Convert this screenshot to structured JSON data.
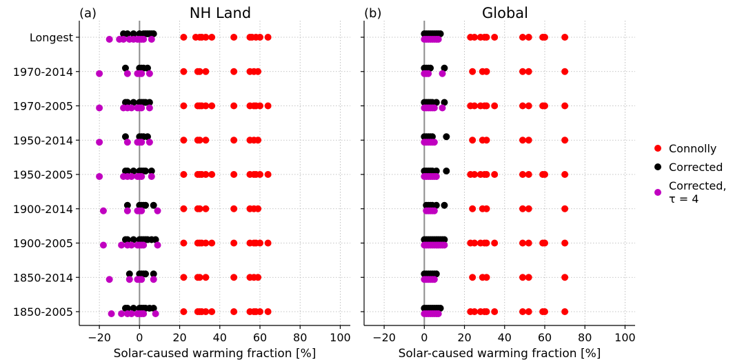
{
  "chart_data": [
    {
      "type": "scatter",
      "panel_label": "(a)",
      "title": "NH Land",
      "xlabel": "Solar-caused warming fraction [%]",
      "xlim": [
        -30,
        105
      ],
      "xticks": [
        -20,
        0,
        20,
        40,
        60,
        80,
        100
      ],
      "reference_line_x": 0,
      "grid": true,
      "categories": [
        "Longest",
        "1970-2014",
        "1970-2005",
        "1950-2014",
        "1950-2005",
        "1900-2014",
        "1900-2005",
        "1850-2014",
        "1850-2005"
      ],
      "series": [
        {
          "name": "Connolly",
          "points": {
            "Longest": [
              22,
              28,
              30,
              31,
              33,
              36,
              47,
              55,
              56,
              58,
              60,
              64
            ],
            "1970-2014": [
              22,
              29,
              30,
              33,
              47,
              55,
              57,
              59
            ],
            "1970-2005": [
              22,
              29,
              30,
              31,
              33,
              36,
              47,
              55,
              57,
              58,
              60,
              64
            ],
            "1950-2014": [
              22,
              29,
              30,
              33,
              47,
              55,
              57,
              59
            ],
            "1950-2005": [
              22,
              29,
              30,
              31,
              33,
              36,
              47,
              55,
              57,
              58,
              60,
              64
            ],
            "1900-2014": [
              22,
              29,
              30,
              33,
              47,
              55,
              57,
              59
            ],
            "1900-2005": [
              22,
              29,
              30,
              31,
              33,
              36,
              47,
              55,
              57,
              58,
              60,
              64
            ],
            "1850-2014": [
              22,
              29,
              30,
              33,
              47,
              55,
              57,
              59
            ],
            "1850-2005": [
              22,
              29,
              30,
              31,
              33,
              36,
              47,
              55,
              57,
              58,
              60,
              64
            ]
          }
        },
        {
          "name": "Corrected",
          "points": {
            "Longest": [
              -8,
              -6,
              -3,
              0,
              2,
              3,
              4,
              5,
              6,
              7
            ],
            "1970-2014": [
              -7,
              0,
              1,
              2,
              4
            ],
            "1970-2005": [
              -7,
              -6,
              -3,
              0,
              1,
              2,
              3,
              5
            ],
            "1950-2014": [
              -7,
              0,
              1,
              2,
              4
            ],
            "1950-2005": [
              -7,
              -6,
              -3,
              0,
              1,
              2,
              3,
              6
            ],
            "1900-2014": [
              -6,
              0,
              1,
              2,
              3,
              7
            ],
            "1900-2005": [
              -7,
              -6,
              -3,
              0,
              1,
              2,
              3,
              4,
              6,
              8
            ],
            "1850-2014": [
              -5,
              0,
              1,
              2,
              3,
              7
            ],
            "1850-2005": [
              -7,
              -6,
              -3,
              0,
              1,
              2,
              3,
              5,
              7
            ]
          }
        },
        {
          "name": "Corrected,\nτ = 4",
          "points": {
            "Longest": [
              -15,
              -10,
              -8,
              -5,
              -3,
              -1,
              0,
              1,
              2,
              6
            ],
            "1970-2014": [
              -20,
              -6,
              -1,
              0,
              1,
              5
            ],
            "1970-2005": [
              -20,
              -8,
              -6,
              -4,
              -1,
              0,
              1,
              5
            ],
            "1950-2014": [
              -20,
              -6,
              -1,
              0,
              1,
              5
            ],
            "1950-2005": [
              -20,
              -8,
              -6,
              -4,
              -1,
              0,
              1,
              6
            ],
            "1900-2014": [
              -18,
              -6,
              -1,
              0,
              1,
              9
            ],
            "1900-2005": [
              -18,
              -9,
              -6,
              -4,
              -1,
              0,
              1,
              2,
              9
            ],
            "1850-2014": [
              -15,
              -5,
              -1,
              0,
              1,
              7
            ],
            "1850-2005": [
              -14,
              -9,
              -6,
              -4,
              -1,
              0,
              1,
              2,
              8
            ]
          }
        }
      ]
    },
    {
      "type": "scatter",
      "panel_label": "(b)",
      "title": "Global",
      "xlabel": "Solar-caused warming fraction [%]",
      "xlim": [
        -30,
        105
      ],
      "xticks": [
        -20,
        0,
        20,
        40,
        60,
        80,
        100
      ],
      "reference_line_x": 0,
      "grid": true,
      "categories": [
        "Longest",
        "1970-2014",
        "1970-2005",
        "1950-2014",
        "1950-2005",
        "1900-2014",
        "1900-2005",
        "1850-2014",
        "1850-2005"
      ],
      "series": [
        {
          "name": "Connolly",
          "points": {
            "Longest": [
              23,
              25,
              28,
              30,
              31,
              35,
              49,
              52,
              59,
              60,
              70
            ],
            "1970-2014": [
              24,
              29,
              31,
              49,
              52,
              70
            ],
            "1970-2005": [
              23,
              25,
              28,
              30,
              31,
              35,
              49,
              52,
              59,
              60,
              70
            ],
            "1950-2014": [
              24,
              29,
              31,
              49,
              52,
              70
            ],
            "1950-2005": [
              23,
              25,
              28,
              30,
              31,
              35,
              49,
              52,
              59,
              60,
              70
            ],
            "1900-2014": [
              24,
              29,
              31,
              49,
              52,
              70
            ],
            "1900-2005": [
              23,
              25,
              28,
              30,
              31,
              35,
              49,
              52,
              59,
              60,
              70
            ],
            "1850-2014": [
              24,
              29,
              31,
              49,
              52,
              70
            ],
            "1850-2005": [
              23,
              25,
              28,
              30,
              31,
              35,
              49,
              52,
              59,
              60,
              70
            ]
          }
        },
        {
          "name": "Corrected",
          "points": {
            "Longest": [
              0,
              1,
              2,
              3,
              4,
              5,
              6,
              7,
              8
            ],
            "1970-2014": [
              0,
              1,
              2,
              3,
              10
            ],
            "1970-2005": [
              0,
              1,
              2,
              3,
              4,
              6,
              10
            ],
            "1950-2014": [
              0,
              1,
              2,
              3,
              4,
              11
            ],
            "1950-2005": [
              0,
              1,
              2,
              3,
              4,
              6,
              11
            ],
            "1900-2014": [
              1,
              2,
              3,
              4,
              6,
              10
            ],
            "1900-2005": [
              0,
              1,
              2,
              3,
              4,
              5,
              6,
              7,
              8,
              9,
              10
            ],
            "1850-2014": [
              0,
              1,
              2,
              3,
              4,
              5,
              6
            ],
            "1850-2005": [
              0,
              1,
              2,
              3,
              4,
              5,
              6,
              7,
              8
            ]
          }
        },
        {
          "name": "Corrected,\nτ = 4",
          "points": {
            "Longest": [
              0,
              1,
              2,
              3,
              4,
              5,
              6,
              7
            ],
            "1970-2014": [
              0,
              1,
              2,
              9
            ],
            "1970-2005": [
              0,
              1,
              2,
              3,
              4,
              5,
              9
            ],
            "1950-2014": [
              0,
              1,
              2,
              3,
              4,
              5
            ],
            "1950-2005": [
              0,
              1,
              2,
              3,
              4,
              5,
              6
            ],
            "1900-2014": [
              1,
              2,
              3,
              4,
              5
            ],
            "1900-2005": [
              0,
              1,
              2,
              3,
              4,
              5,
              6,
              7,
              8,
              9,
              10
            ],
            "1850-2014": [
              0,
              1,
              2,
              3,
              4,
              5
            ],
            "1850-2005": [
              0,
              1,
              2,
              3,
              4,
              5,
              6,
              7
            ]
          }
        }
      ]
    }
  ],
  "legend": {
    "placement": "right",
    "items": [
      {
        "label": "Connolly",
        "color": "#ff0000"
      },
      {
        "label": "Corrected",
        "color": "#000000"
      },
      {
        "label": "Corrected,\nτ = 4",
        "color": "#c000c0"
      }
    ]
  },
  "colors": {
    "Connolly": "#ff0000",
    "Corrected": "#000000",
    "Corrected,\nτ = 4": "#c000c0",
    "reference_line": "#8c8c8c",
    "grid": "#b0b0b0"
  }
}
